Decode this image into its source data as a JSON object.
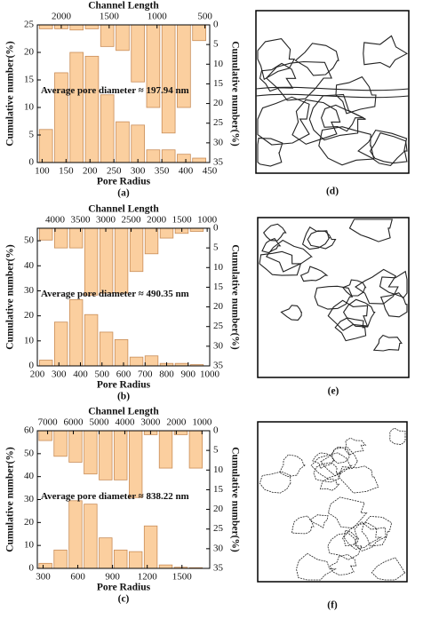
{
  "chart_data": [
    {
      "type": "bar",
      "title": "(a)",
      "x_label": "Pore Radius",
      "x2_label": "Channel Length",
      "y_label": "Cumulative number(%)",
      "y2_label": "Cumulative number(%)",
      "annotation": "Average pore diameter ≈ 197.94 nm",
      "xlim": [
        90,
        450
      ],
      "xticks": [
        100,
        150,
        200,
        250,
        300,
        350,
        400,
        450
      ],
      "x2lim": [
        2250,
        450
      ],
      "x2ticks": [
        2000,
        1500,
        1000,
        500
      ],
      "ylim": [
        0,
        25
      ],
      "yticks": [
        0,
        5,
        10,
        15,
        20,
        25
      ],
      "y2lim": [
        35,
        0
      ],
      "y2ticks": [
        0,
        5,
        10,
        15,
        20,
        25,
        30,
        35
      ],
      "x": [
        108,
        140,
        172,
        204,
        236,
        268,
        300,
        332,
        364,
        396,
        428
      ],
      "series": [
        {
          "color": "#fbcf9f",
          "edge_color": "#c98d58",
          "values": [
            6,
            16.3,
            20,
            19.3,
            12.3,
            7.4,
            6.8,
            2.3,
            2.3,
            1.5,
            0.8
          ]
        },
        {
          "color": "#fbcf9f",
          "edge_color": "#c98d58",
          "axis": "y2",
          "values": [
            1,
            1,
            1.3,
            1,
            5.5,
            6.5,
            14.5,
            21,
            27.5,
            21,
            4
          ]
        }
      ]
    },
    {
      "type": "bar",
      "title": "(b)",
      "x_label": "Pore Radius",
      "x2_label": "Channel Length",
      "y_label": "Cumulative number(%)",
      "y2_label": "Cumulative number(%)",
      "annotation": "Average pore diameter ≈ 490.35 nm",
      "xlim": [
        200,
        1000
      ],
      "xticks": [
        200,
        300,
        400,
        500,
        600,
        700,
        800,
        900,
        1000
      ],
      "x2lim": [
        4350,
        950
      ],
      "x2ticks": [
        4000,
        3500,
        3000,
        2500,
        2000,
        1500,
        1000
      ],
      "ylim": [
        0,
        55
      ],
      "yticks": [
        0,
        10,
        20,
        30,
        40,
        50
      ],
      "y2lim": [
        35,
        0
      ],
      "y2ticks": [
        0,
        5,
        10,
        15,
        20,
        25,
        30,
        35
      ],
      "x": [
        240,
        310,
        380,
        450,
        520,
        590,
        660,
        730,
        800,
        870,
        940
      ],
      "series": [
        {
          "color": "#fbcf9f",
          "edge_color": "#c98d58",
          "values": [
            2.3,
            17.5,
            26.5,
            20.5,
            13.5,
            10.5,
            3.5,
            4,
            1,
            1,
            0.5
          ]
        },
        {
          "color": "#fbcf9f",
          "edge_color": "#c98d58",
          "axis": "y2",
          "values": [
            3,
            5,
            5,
            17,
            16.5,
            16.5,
            11,
            6.5,
            2.5,
            1.3,
            0.8
          ]
        }
      ]
    },
    {
      "type": "bar",
      "title": "(c)",
      "x_label": "Pore Radius",
      "x2_label": "Channel Length",
      "y_label": "Cumulative number(%)",
      "y2_label": "Cumulative number(%)",
      "annotation": "Average pore diameter ≈ 838.22 nm",
      "xlim": [
        250,
        1740
      ],
      "xticks": [
        300,
        600,
        900,
        1200,
        1500
      ],
      "x2lim": [
        7400,
        700
      ],
      "x2ticks": [
        7000,
        6000,
        5000,
        4000,
        3000,
        2000,
        1000
      ],
      "ylim": [
        0,
        60
      ],
      "yticks": [
        0,
        10,
        20,
        30,
        40,
        50,
        60
      ],
      "y2lim": [
        35,
        0
      ],
      "y2ticks": [
        0,
        5,
        10,
        15,
        20,
        25,
        30,
        35
      ],
      "x": [
        320,
        450,
        580,
        710,
        840,
        970,
        1100,
        1230,
        1360,
        1490,
        1620
      ],
      "series": [
        {
          "color": "#fbcf9f",
          "edge_color": "#c98d58",
          "values": [
            2.2,
            8,
            29.5,
            28,
            13.3,
            8,
            7.3,
            18.5,
            1.5,
            0.5,
            0.3
          ]
        },
        {
          "color": "#fbcf9f",
          "edge_color": "#c98d58",
          "axis": "y2",
          "values": [
            2.5,
            6.5,
            8,
            11,
            12.5,
            12.5,
            17,
            1,
            9.5,
            1,
            9.5
          ]
        }
      ]
    }
  ],
  "images": [
    {
      "label": "(d)"
    },
    {
      "label": "(e)"
    },
    {
      "label": "(f)"
    }
  ]
}
